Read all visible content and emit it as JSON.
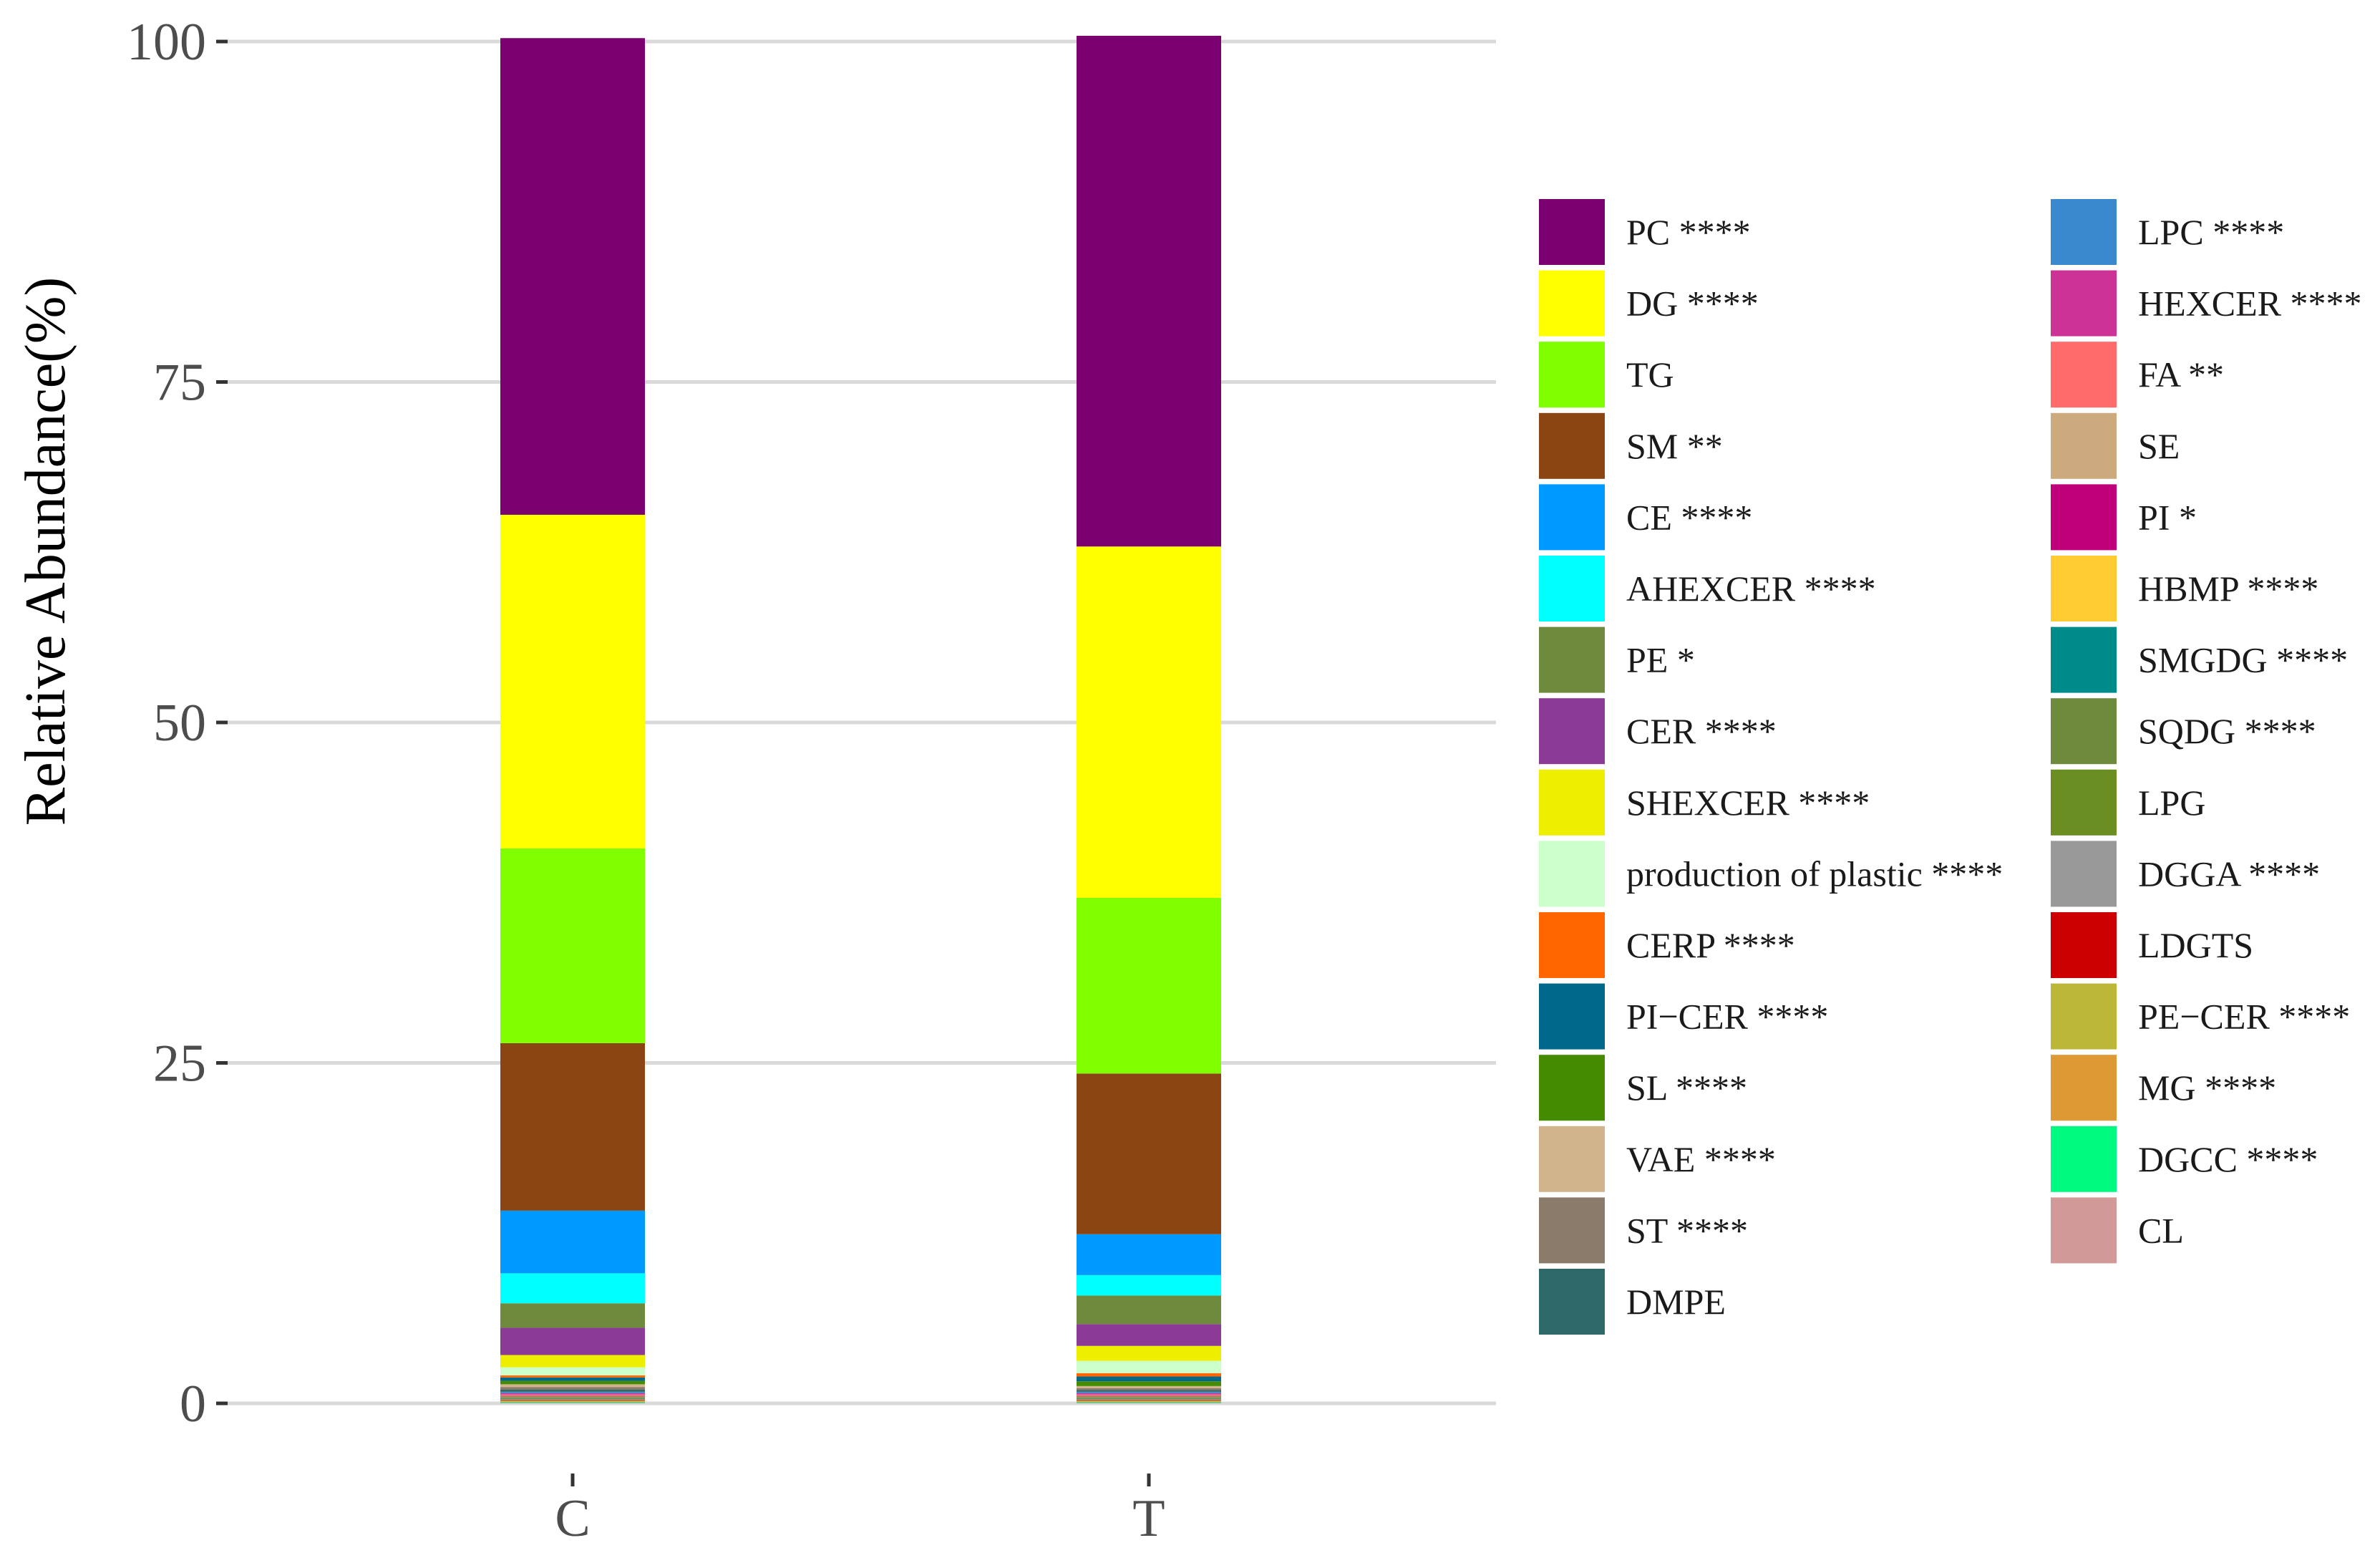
{
  "chart_data": {
    "type": "bar",
    "stacked": true,
    "ylabel": "Relative Abundance(%)",
    "xlabel": "",
    "ylim": [
      0,
      100
    ],
    "yticks": [
      0,
      25,
      50,
      75,
      100
    ],
    "grid": true,
    "legend_position": "right",
    "categories": [
      "C",
      "T"
    ],
    "series": [
      {
        "name": "PC ****",
        "color": "#7B0070",
        "values": [
          35.0,
          37.5
        ]
      },
      {
        "name": "DG ****",
        "color": "#FFFF00",
        "values": [
          24.5,
          25.8
        ]
      },
      {
        "name": "TG",
        "color": "#7FFF00",
        "values": [
          14.3,
          12.9
        ]
      },
      {
        "name": "SM **",
        "color": "#8B4513",
        "values": [
          12.3,
          11.8
        ]
      },
      {
        "name": "CE ****",
        "color": "#0099FF",
        "values": [
          4.6,
          3.0
        ]
      },
      {
        "name": "AHEXCER ****",
        "color": "#00FFFF",
        "values": [
          2.2,
          1.5
        ]
      },
      {
        "name": "PE *",
        "color": "#6E8B3D",
        "values": [
          1.8,
          2.1
        ]
      },
      {
        "name": "CER ****",
        "color": "#8B3A96",
        "values": [
          2.0,
          1.6
        ]
      },
      {
        "name": "SHEXCER ****",
        "color": "#EEEE00",
        "values": [
          0.9,
          1.1
        ]
      },
      {
        "name": "production of plastic ****",
        "color": "#CCFFCC",
        "values": [
          0.6,
          0.9
        ]
      },
      {
        "name": "CERP ****",
        "color": "#FF6600",
        "values": [
          0.15,
          0.25
        ]
      },
      {
        "name": "PI−CER ****",
        "color": "#00688B",
        "values": [
          0.25,
          0.35
        ]
      },
      {
        "name": "SL ****",
        "color": "#458B00",
        "values": [
          0.25,
          0.35
        ]
      },
      {
        "name": "VAE ****",
        "color": "#D2B48C",
        "values": [
          0.2,
          0.15
        ]
      },
      {
        "name": "ST ****",
        "color": "#8B7B6B",
        "values": [
          0.2,
          0.15
        ]
      },
      {
        "name": "DMPE",
        "color": "#2F6868",
        "values": [
          0.15,
          0.12
        ]
      },
      {
        "name": "LPC ****",
        "color": "#3A88CE",
        "values": [
          0.1,
          0.1
        ]
      },
      {
        "name": "HEXCER ****",
        "color": "#CD3296",
        "values": [
          0.1,
          0.1
        ]
      },
      {
        "name": "FA **",
        "color": "#FF6A6A",
        "values": [
          0.05,
          0.05
        ]
      },
      {
        "name": "SE",
        "color": "#CDAA7D",
        "values": [
          0.05,
          0.05
        ]
      },
      {
        "name": "PI *",
        "color": "#C0007A",
        "values": [
          0.05,
          0.05
        ]
      },
      {
        "name": "HBMP ****",
        "color": "#FFCC33",
        "values": [
          0.05,
          0.05
        ]
      },
      {
        "name": "SMGDG ****",
        "color": "#008B8B",
        "values": [
          0.05,
          0.05
        ]
      },
      {
        "name": "SQDG ****",
        "color": "#6E8B3D",
        "values": [
          0.05,
          0.05
        ]
      },
      {
        "name": "LPG",
        "color": "#6B8E23",
        "values": [
          0.05,
          0.05
        ]
      },
      {
        "name": "DGGA ****",
        "color": "#999999",
        "values": [
          0.05,
          0.05
        ]
      },
      {
        "name": "LDGTS",
        "color": "#CC0000",
        "values": [
          0.05,
          0.05
        ]
      },
      {
        "name": "PE−CER ****",
        "color": "#BDB739",
        "values": [
          0.05,
          0.05
        ]
      },
      {
        "name": "MG ****",
        "color": "#DD9933",
        "values": [
          0.05,
          0.05
        ]
      },
      {
        "name": "DGCC ****",
        "color": "#00FA7F",
        "values": [
          0.05,
          0.05
        ]
      },
      {
        "name": "CL",
        "color": "#D29999",
        "values": [
          0.05,
          0.05
        ]
      }
    ]
  }
}
